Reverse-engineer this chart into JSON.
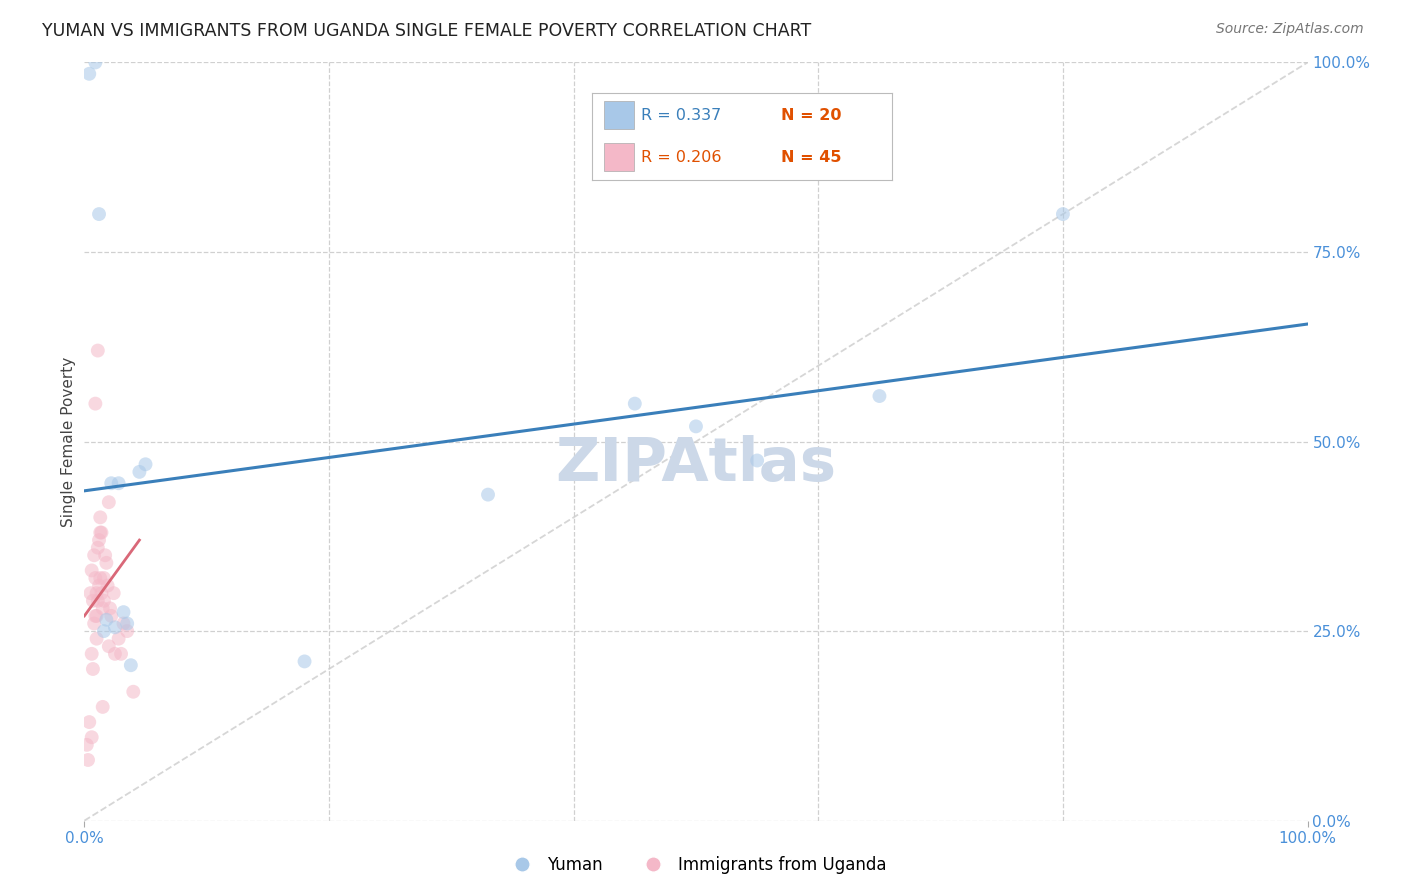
{
  "title": "YUMAN VS IMMIGRANTS FROM UGANDA SINGLE FEMALE POVERTY CORRELATION CHART",
  "source": "Source: ZipAtlas.com",
  "ylabel": "Single Female Poverty",
  "ytick_values": [
    0,
    25,
    50,
    75,
    100
  ],
  "xlim": [
    0,
    100
  ],
  "ylim": [
    0,
    100
  ],
  "bottom_legend": [
    "Yuman",
    "Immigrants from Uganda"
  ],
  "blue_scatter_color": "#a8c8e8",
  "pink_scatter_color": "#f4b8c8",
  "blue_line_color": "#3a7fba",
  "pink_line_color": "#d96878",
  "diagonal_color": "#cccccc",
  "background_color": "#ffffff",
  "grid_color": "#d0d0d0",
  "watermark_color": "#ccd8e8",
  "legend_R1_color": "#3a7fba",
  "legend_N1_color": "#e05000",
  "legend_R2_color": "#e05000",
  "legend_N2_color": "#e05000",
  "tick_color": "#4a90d9",
  "yuman_x": [
    0.4,
    1.2,
    4.5,
    5.0,
    2.8,
    33.0,
    3.8,
    3.2,
    50.0,
    65.0,
    55.0,
    80.0,
    45.0,
    1.8,
    3.5,
    18.0,
    0.9,
    2.5,
    1.6,
    2.2
  ],
  "yuman_y": [
    98.5,
    80.0,
    46.0,
    47.0,
    44.5,
    43.0,
    20.5,
    27.5,
    52.0,
    56.0,
    47.5,
    80.0,
    55.0,
    26.5,
    26.0,
    21.0,
    100.0,
    25.5,
    25.0,
    44.5
  ],
  "uganda_x": [
    0.2,
    0.3,
    0.4,
    0.5,
    0.6,
    0.6,
    0.7,
    0.7,
    0.8,
    0.8,
    0.9,
    0.9,
    1.0,
    1.0,
    1.0,
    1.1,
    1.1,
    1.2,
    1.2,
    1.3,
    1.3,
    1.4,
    1.5,
    1.5,
    1.6,
    1.7,
    1.8,
    1.9,
    2.0,
    2.1,
    2.2,
    2.4,
    2.5,
    2.8,
    3.0,
    3.2,
    3.5,
    4.0,
    1.4,
    0.9,
    1.1,
    2.0,
    1.6,
    0.6,
    1.3
  ],
  "uganda_y": [
    10.0,
    8.0,
    13.0,
    30.0,
    33.0,
    22.0,
    20.0,
    29.0,
    26.0,
    35.0,
    27.0,
    32.0,
    24.0,
    30.0,
    27.0,
    29.0,
    36.0,
    31.0,
    37.0,
    32.0,
    38.0,
    30.0,
    28.0,
    15.0,
    32.0,
    35.0,
    34.0,
    31.0,
    23.0,
    28.0,
    27.0,
    30.0,
    22.0,
    24.0,
    22.0,
    26.0,
    25.0,
    17.0,
    38.0,
    55.0,
    62.0,
    42.0,
    29.0,
    11.0,
    40.0
  ],
  "blue_trendline_x0": 0,
  "blue_trendline_y0": 43.5,
  "blue_trendline_x1": 100,
  "blue_trendline_y1": 65.5,
  "pink_trendline_x0": 0,
  "pink_trendline_y0": 27.0,
  "pink_trendline_x1": 4.5,
  "pink_trendline_y1": 37.0,
  "marker_size": 100,
  "marker_alpha": 0.55
}
